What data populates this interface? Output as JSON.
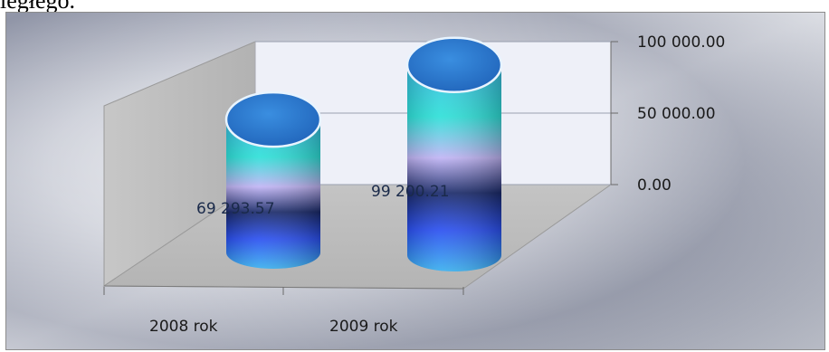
{
  "header_text": "ległego.",
  "colors": {
    "cylinder_top": "#2a78cc",
    "cylinder_body_light": "#2ee0e0",
    "cylinder_body_mid": "#b8a8f0",
    "cylinder_body_dark": "#1a2a70",
    "cylinder_body_blue": "#2a5ae8",
    "back_wall": "#eef0f8",
    "floor": "#b8b8b8"
  },
  "chart_data": {
    "type": "bar",
    "subtype": "3d-cylinder",
    "categories": [
      "2008 rok",
      "2009 rok"
    ],
    "values": [
      69293.57,
      99200.21
    ],
    "value_labels": [
      "69 293.57",
      "99 200.21"
    ],
    "y_ticks": [
      "100 000.00",
      "50 000.00",
      "0.00"
    ],
    "ylim": [
      0,
      100000
    ],
    "title": "",
    "xlabel": "",
    "ylabel": "",
    "grid": true,
    "legend": "none",
    "axis_position": "right"
  }
}
